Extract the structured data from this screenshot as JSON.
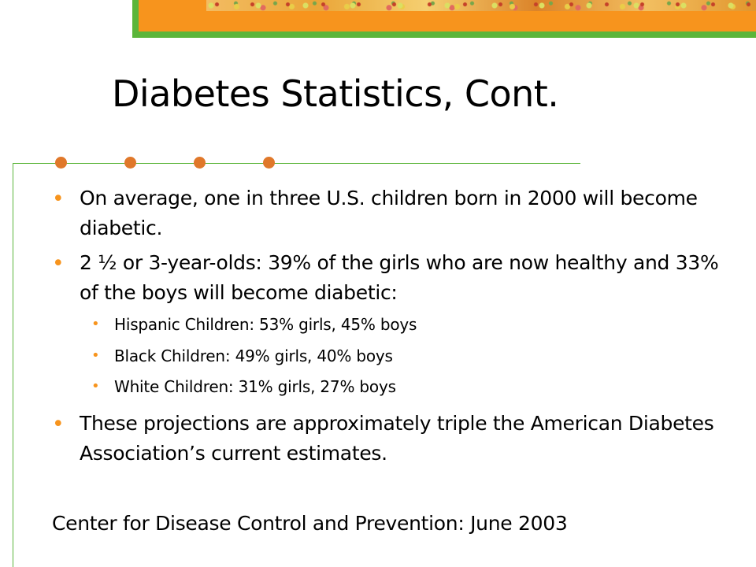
{
  "slide": {
    "title": "Diabetes Statistics, Cont.",
    "bullets": [
      {
        "text": "On average, one in three U.S. children born in 2000 will become diabetic."
      },
      {
        "text": "2 ½ or 3-year-olds: 39% of the girls who are now healthy and 33% of the boys will become diabetic:"
      },
      {
        "text": "These projections are approximately triple the American Diabetes Association’s current estimates."
      }
    ],
    "sub_bullets": [
      {
        "text": "Hispanic Children: 53% girls, 45% boys"
      },
      {
        "text": "Black Children: 49% girls, 40% boys"
      },
      {
        "text": "White Children: 31% girls, 27% boys"
      }
    ],
    "source": "Center for Disease Control and Prevention: June 2003",
    "bullet_glyph": "•"
  },
  "colors": {
    "accent_orange": "#f7941d",
    "accent_green": "#5bb53a",
    "dot_orange": "#e0782a"
  }
}
